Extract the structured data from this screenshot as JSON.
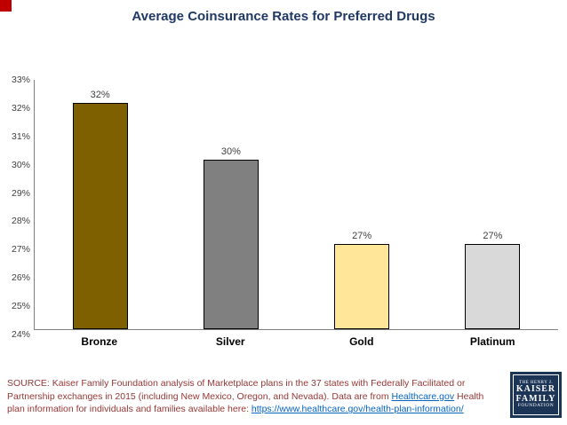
{
  "slide": {
    "title": "Average Coinsurance Rates for Preferred Drugs",
    "title_color": "#1F3864",
    "accent_red": "#C00000",
    "axis_color": "#808080"
  },
  "chart_data": {
    "type": "bar",
    "title": "Average Coinsurance Rates for Preferred Drugs",
    "categories": [
      "Bronze",
      "Silver",
      "Gold",
      "Platinum"
    ],
    "values": [
      32,
      30,
      27,
      27
    ],
    "value_labels": [
      "32%",
      "30%",
      "27%",
      "27%"
    ],
    "bar_colors": [
      "#7F6000",
      "#808080",
      "#FFE699",
      "#D9D9D9"
    ],
    "ylim": [
      24,
      33
    ],
    "ytick_step": 1,
    "ytick_labels": [
      "24%",
      "25%",
      "26%",
      "27%",
      "28%",
      "29%",
      "30%",
      "31%",
      "32%",
      "33%"
    ],
    "grid": false,
    "legend": "none",
    "xlabel": "",
    "ylabel": ""
  },
  "source": {
    "text_color": "#953735",
    "link_color": "#0563C1",
    "prefix": "SOURCE: Kaiser Family Foundation analysis of Marketplace plans in the 37 states with Federally Facilitated or Partnership exchanges in 2015 (including New Mexico, Oregon, and Nevada). Data are from ",
    "link1": "Healthcare.gov",
    "middle": " Health plan information for individuals and families available here: ",
    "link2": "https://www.healthcare.gov/health-plan-information/"
  },
  "logo": {
    "bg_color": "#1C3557",
    "line1": "THE HENRY J.",
    "line2": "KAISER",
    "line3": "FAMILY",
    "line4": "FOUNDATION"
  }
}
